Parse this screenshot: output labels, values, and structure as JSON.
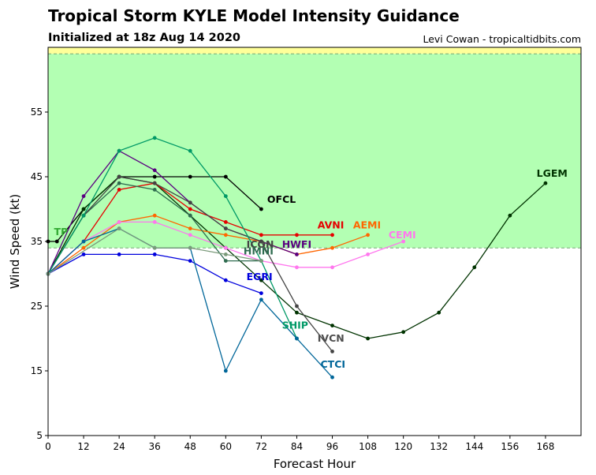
{
  "header": {
    "title": "Tropical Storm KYLE Model Intensity Guidance",
    "subtitle": "Initialized at 18z Aug 14 2020",
    "credit": "Levi Cowan - tropicaltidbits.com"
  },
  "chart_data": {
    "type": "line",
    "xlabel": "Forecast Hour",
    "ylabel": "Wind Speed (kt)",
    "xlim": [
      0,
      180
    ],
    "ylim": [
      5,
      65
    ],
    "xticks": [
      0,
      12,
      24,
      36,
      48,
      60,
      72,
      84,
      96,
      108,
      120,
      132,
      144,
      156,
      168
    ],
    "yticks": [
      5,
      15,
      25,
      35,
      45,
      55
    ],
    "grid": false,
    "background_bands": [
      {
        "from": 34,
        "to": 64,
        "color": "#b3ffb3",
        "label": ""
      },
      {
        "from": 64,
        "to": 65,
        "color": "#ffff99",
        "label": ""
      }
    ],
    "threshold_lines": [
      34,
      64
    ],
    "series": [
      {
        "name": "OFCL",
        "color": "#000000",
        "x": [
          0,
          3,
          12,
          24,
          36,
          48,
          60,
          72
        ],
        "y": [
          35,
          35,
          40,
          45,
          45,
          45,
          45,
          40
        ]
      },
      {
        "name": "TP",
        "color": "#33aa33",
        "x": [],
        "y": []
      },
      {
        "name": "LGEM",
        "color": "#003300",
        "x": [
          0,
          12,
          24,
          36,
          48,
          60,
          72,
          84,
          96,
          108,
          120,
          132,
          144,
          156,
          168
        ],
        "y": [
          30,
          40,
          45,
          44,
          39,
          34,
          29,
          24,
          22,
          20,
          21,
          24,
          31,
          39,
          44
        ]
      },
      {
        "name": "AVNI",
        "color": "#e60000",
        "x": [
          0,
          12,
          24,
          36,
          48,
          60,
          72,
          84,
          96
        ],
        "y": [
          30,
          35,
          43,
          44,
          40,
          38,
          36,
          36,
          36
        ]
      },
      {
        "name": "AEMI",
        "color": "#ff6600",
        "x": [
          0,
          12,
          24,
          36,
          48,
          60,
          72,
          84,
          96,
          108
        ],
        "y": [
          30,
          34,
          38,
          39,
          37,
          36,
          35,
          33,
          34,
          36
        ]
      },
      {
        "name": "CEMI",
        "color": "#ff77ee",
        "x": [
          0,
          12,
          24,
          36,
          48,
          60,
          72,
          84,
          96,
          108,
          120
        ],
        "y": [
          30,
          35,
          38,
          38,
          36,
          34,
          32,
          31,
          31,
          33,
          35
        ]
      },
      {
        "name": "HWFI",
        "color": "#5a0080",
        "x": [
          0,
          12,
          24,
          36,
          48,
          60,
          72,
          84
        ],
        "y": [
          30,
          42,
          49,
          46,
          41,
          37,
          35,
          33
        ]
      },
      {
        "name": "HMNI",
        "color": "#2e6b4f",
        "x": [
          0,
          12,
          24,
          36,
          48,
          60,
          72
        ],
        "y": [
          30,
          39,
          44,
          43,
          39,
          32,
          32
        ]
      },
      {
        "name": "ICON",
        "color": "#444444",
        "x": [
          0,
          12,
          24,
          36,
          48,
          60,
          72,
          84,
          96
        ],
        "y": [
          30,
          39,
          45,
          44,
          41,
          37,
          35,
          25,
          18
        ]
      },
      {
        "name": "IVCN",
        "color": "#4d4d4d",
        "x": [],
        "y": []
      },
      {
        "name": "SHIP",
        "color": "#009966",
        "x": [
          0,
          12,
          24,
          36,
          48,
          60,
          72,
          84
        ],
        "y": [
          30,
          39,
          49,
          51,
          49,
          42,
          32,
          20
        ]
      },
      {
        "name": "EGRI",
        "color": "#0000dd",
        "x": [
          0,
          12,
          24,
          36,
          48,
          60,
          72
        ],
        "y": [
          30,
          33,
          33,
          33,
          32,
          29,
          27
        ]
      },
      {
        "name": "CTCI",
        "color": "#006699",
        "x": [
          0,
          12,
          24,
          36,
          48,
          60,
          72,
          84,
          96
        ],
        "y": [
          30,
          35,
          37,
          34,
          34,
          15,
          26,
          20,
          14
        ]
      },
      {
        "name": "",
        "color": "#7a9a7a",
        "x": [
          0,
          24,
          36,
          48,
          60,
          72
        ],
        "y": [
          30,
          37,
          34,
          34,
          33,
          32
        ]
      }
    ],
    "labels": [
      {
        "text": "OFCL",
        "color": "#000000",
        "x": 74,
        "y": 41
      },
      {
        "text": "TP",
        "color": "#33aa33",
        "x": 2,
        "y": 36
      },
      {
        "text": "LGEM",
        "color": "#003300",
        "x": 165,
        "y": 45
      },
      {
        "text": "AVNI",
        "color": "#e60000",
        "x": 91,
        "y": 37
      },
      {
        "text": "AEMI",
        "color": "#ff6600",
        "x": 103,
        "y": 37
      },
      {
        "text": "CEMI",
        "color": "#ff77ee",
        "x": 115,
        "y": 35.5
      },
      {
        "text": "HWFI",
        "color": "#5a0080",
        "x": 79,
        "y": 34
      },
      {
        "text": "ICON",
        "color": "#444444",
        "x": 67,
        "y": 34
      },
      {
        "text": "HMNI",
        "color": "#2e6b4f",
        "x": 66,
        "y": 33
      },
      {
        "text": "EGRI",
        "color": "#0000dd",
        "x": 67,
        "y": 29
      },
      {
        "text": "SHIP",
        "color": "#009966",
        "x": 79,
        "y": 21.5
      },
      {
        "text": "IVCN",
        "color": "#4d4d4d",
        "x": 91,
        "y": 19.5
      },
      {
        "text": "CTCI",
        "color": "#006699",
        "x": 92,
        "y": 15.5
      }
    ]
  }
}
